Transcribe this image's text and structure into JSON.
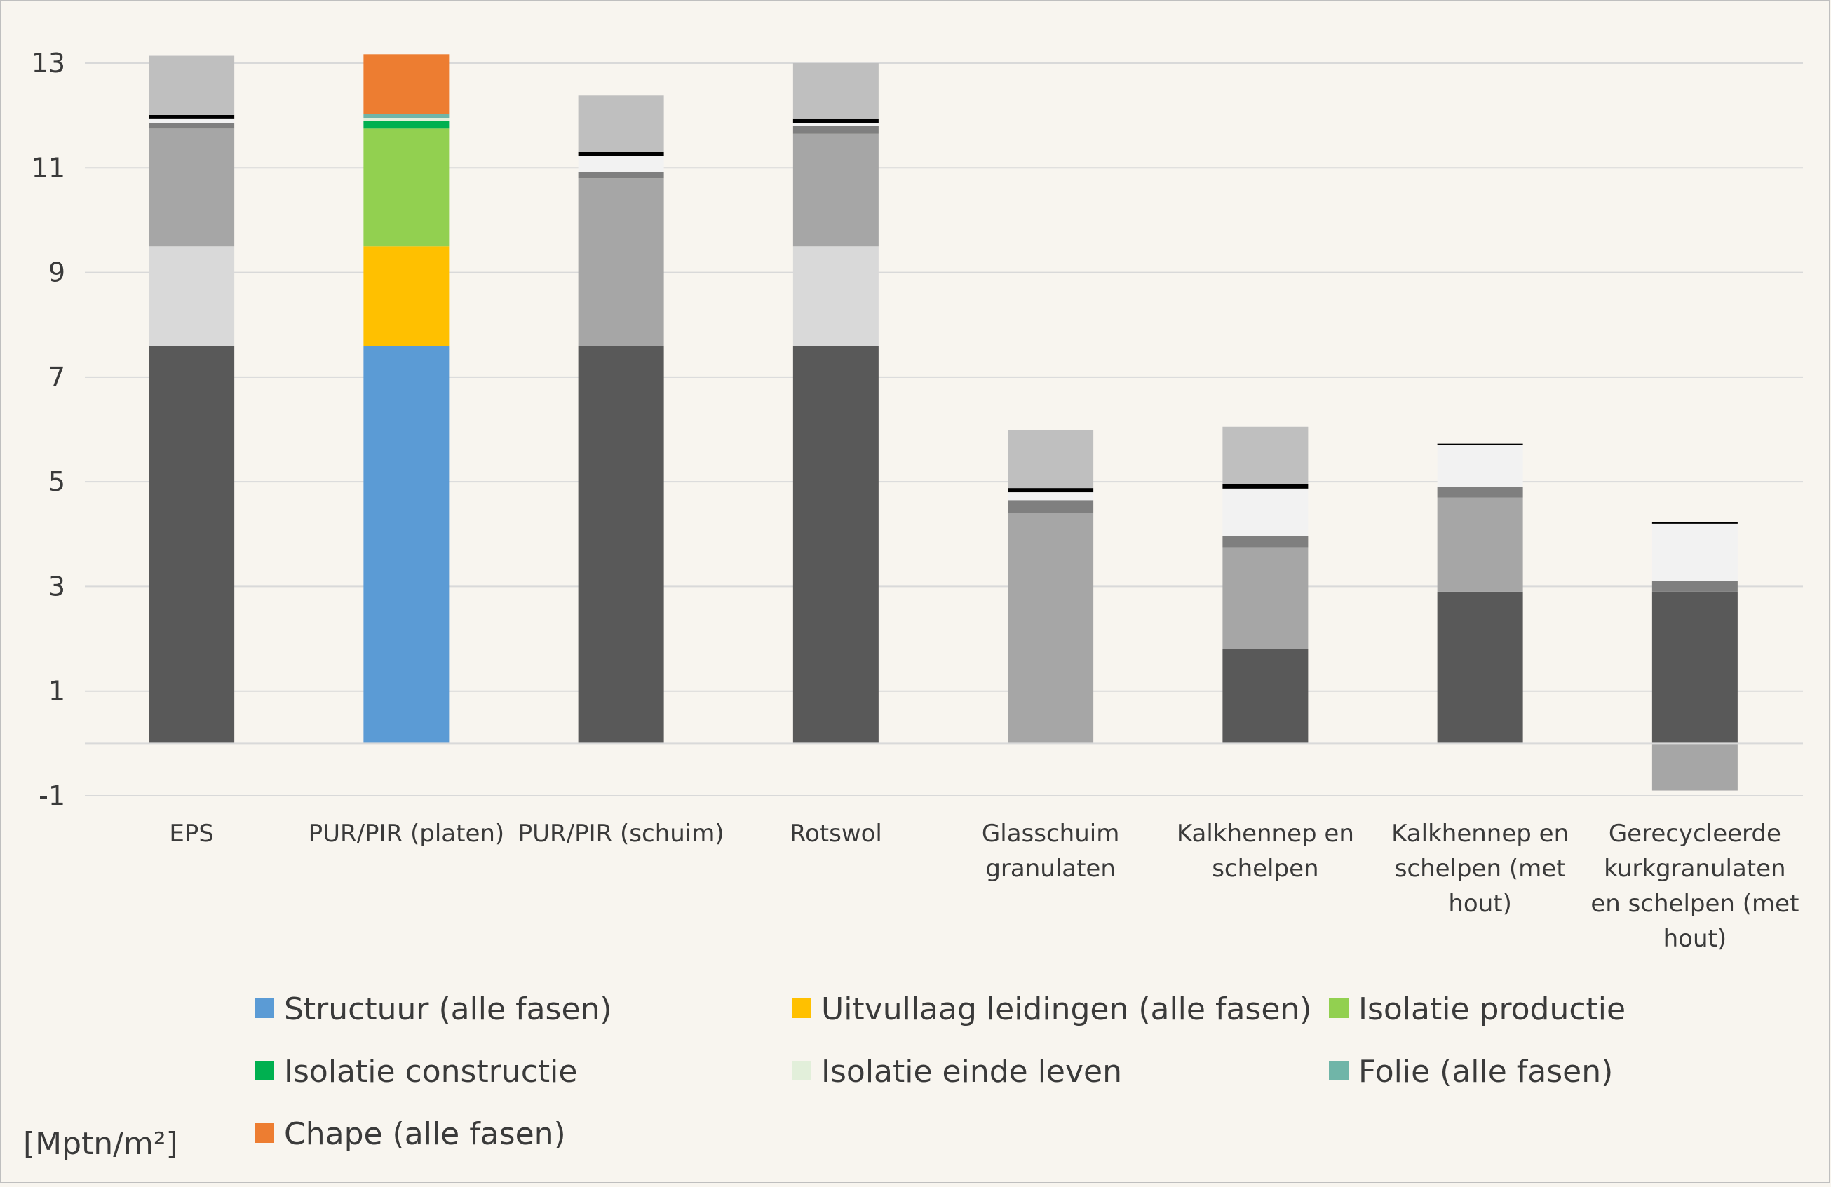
{
  "chart_data": {
    "type": "bar",
    "stacked": true,
    "unit_label": "[Mptn/m²]",
    "ylim": [
      -1,
      13
    ],
    "yticks": [
      -1,
      1,
      3,
      5,
      7,
      9,
      11,
      13
    ],
    "grid": true,
    "legend_position": "bottom",
    "categories": [
      "EPS",
      "PUR/PIR (platen)",
      "PUR/PIR (schuim)",
      "Rotswol",
      "Glasschuim granulaten",
      "Kalkhennep en schelpen",
      "Kalkhennep en schelpen (met hout)",
      "Gerecycleerde kurkgranulaten en schelpen (met hout)"
    ],
    "category_label_lines": [
      [
        "EPS"
      ],
      [
        "PUR/PIR (platen)"
      ],
      [
        "PUR/PIR (schuim)"
      ],
      [
        "Rotswol"
      ],
      [
        "Glasschuim",
        "granulaten"
      ],
      [
        "Kalkhennep en",
        "schelpen"
      ],
      [
        "Kalkhennep en",
        "schelpen (met",
        "hout)"
      ],
      [
        "Gerecycleerde",
        "kurkgranulaten",
        "en schelpen (met",
        "hout)"
      ]
    ],
    "highlighted_category": "PUR/PIR (platen)",
    "series": [
      {
        "name": "Structuur (alle fasen)",
        "color": "#5b9bd5",
        "gray": "#595959",
        "values": [
          7.6,
          7.6,
          7.6,
          7.6,
          0,
          1.8,
          2.9,
          2.9
        ]
      },
      {
        "name": "Uitvullaag leidingen (alle fasen)",
        "color": "#ffc000",
        "gray": "#d9d9d9",
        "values": [
          1.9,
          1.9,
          0,
          1.9,
          0,
          0,
          0,
          0
        ]
      },
      {
        "name": "Isolatie productie",
        "color": "#92d050",
        "gray": "#a6a6a6",
        "values": [
          2.25,
          2.25,
          3.2,
          2.15,
          4.4,
          1.95,
          1.8,
          -0.9
        ]
      },
      {
        "name": "Isolatie constructie",
        "color": "#00b050",
        "gray": "#7f7f7f",
        "values": [
          0.1,
          0.15,
          0.12,
          0.15,
          0.25,
          0.22,
          0.2,
          0.2
        ]
      },
      {
        "name": "Isolatie einde leven",
        "color": "#e2efda",
        "gray": "#f2f2f2",
        "values": [
          0.08,
          0.05,
          0.3,
          0.05,
          0.15,
          0.9,
          0.8,
          1.1
        ]
      },
      {
        "name": "Folie (alle fasen)",
        "color": "#70b5a8",
        "gray": "#000000",
        "values": [
          0.08,
          0.08,
          0.08,
          0.08,
          0.08,
          0.08,
          0.03,
          0.03
        ]
      },
      {
        "name": "Chape (alle fasen)",
        "color": "#ed7d31",
        "gray": "#bfbfbf",
        "values": [
          1.13,
          1.14,
          1.08,
          1.07,
          1.1,
          1.1,
          0,
          0
        ]
      }
    ]
  }
}
